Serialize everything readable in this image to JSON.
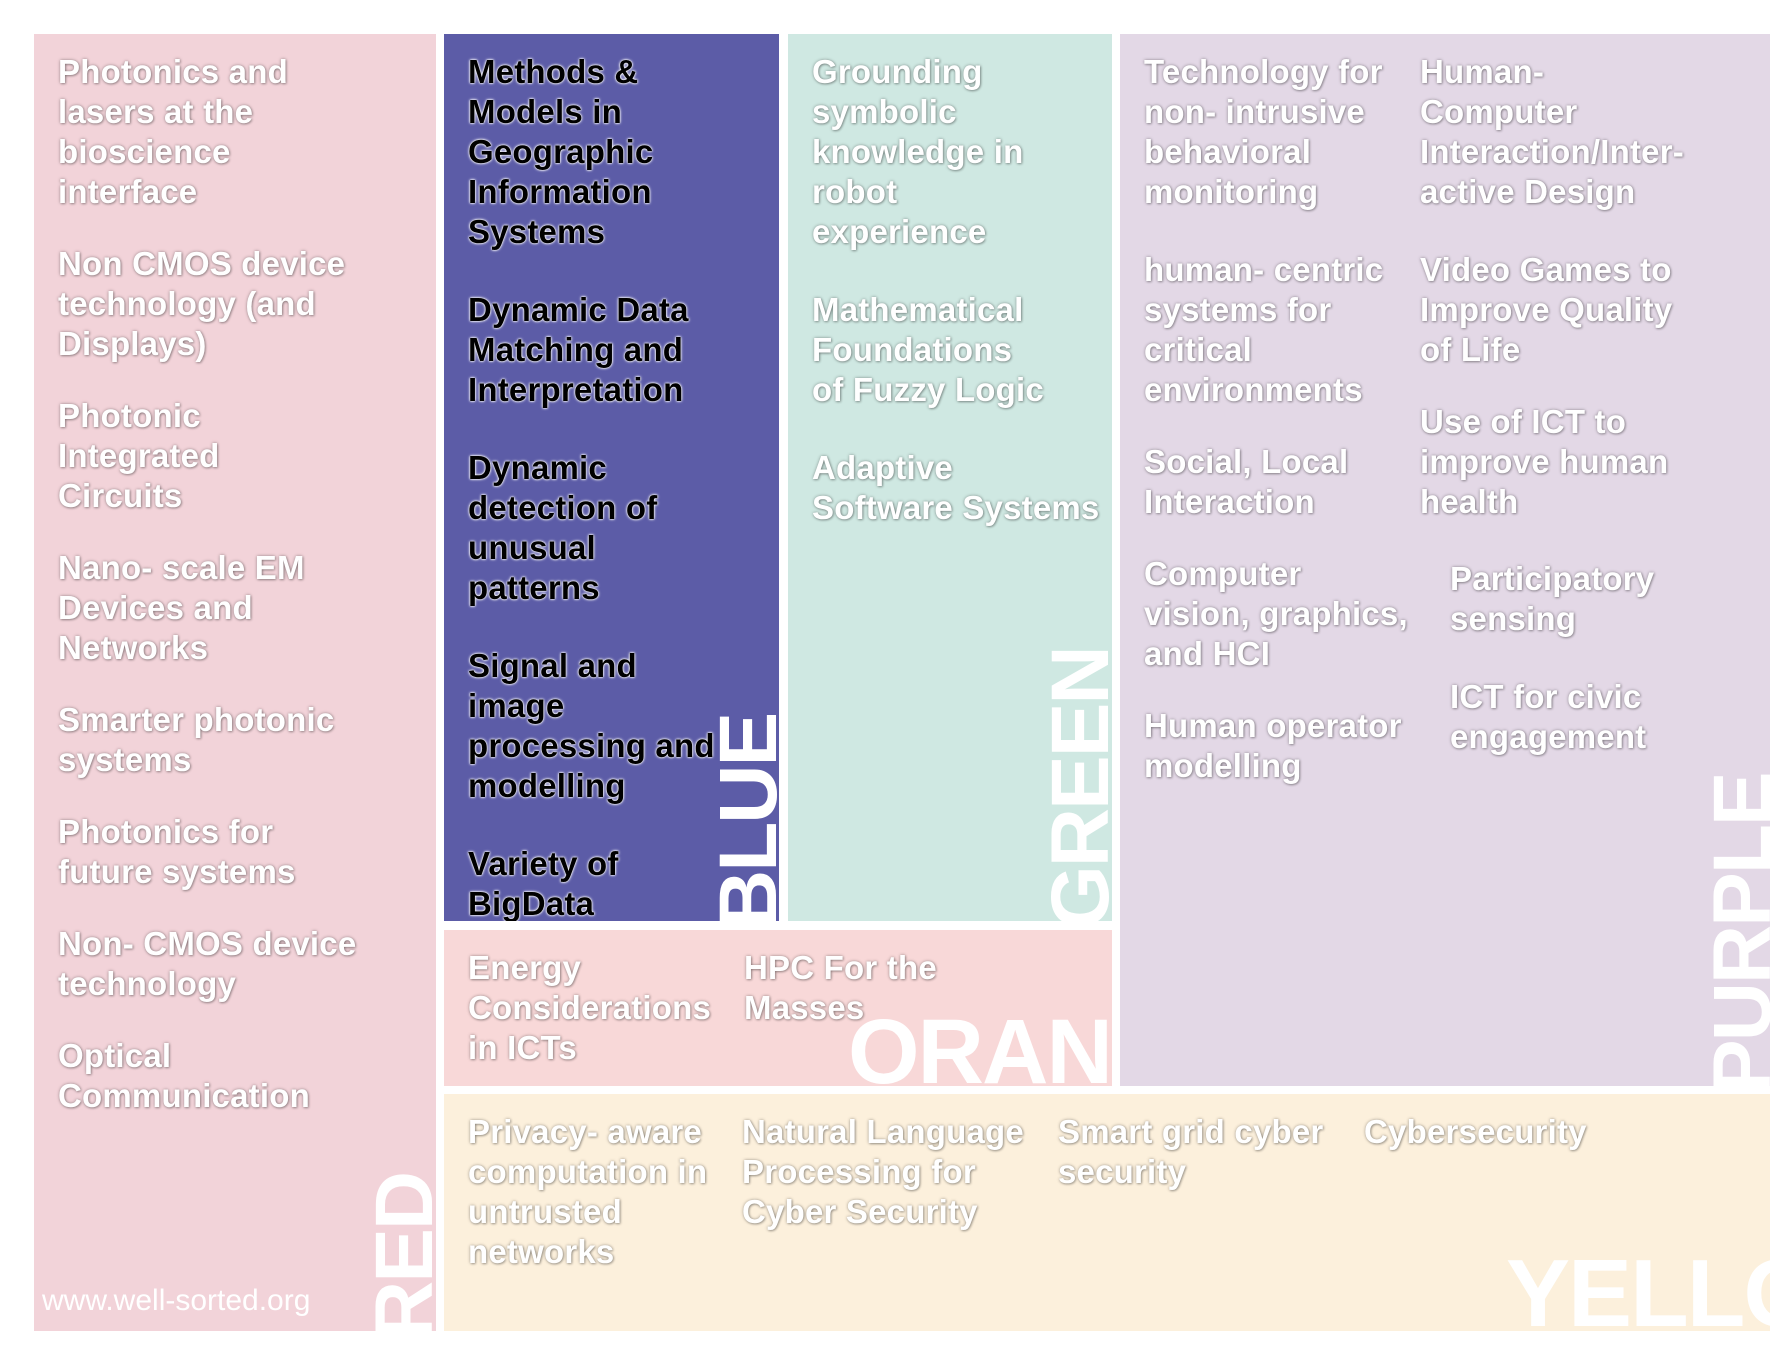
{
  "colors": {
    "red": "#f2d3d9",
    "blue": "#5c5ca7",
    "green": "#cfe8e2",
    "purple": "#e3d8e6",
    "orange": "#f8d8d8",
    "yellow": "#fcf0dc"
  },
  "red": {
    "label": "RED",
    "items": [
      "Photonics and lasers at the bioscience interface",
      "Non CMOS device technology (and Displays)",
      "Photonic Integrated Circuits",
      "Nano- scale EM Devices and Networks",
      "Smarter photonic systems",
      "Photonics for future systems",
      "Non- CMOS device technology",
      "Optical Communication"
    ]
  },
  "blue": {
    "label": "BLUE",
    "items": [
      "Methods & Models in Geographic Information Systems",
      "Dynamic Data Matching and Interpretation",
      "Dynamic detection of unusual patterns",
      "Signal and image processing and modelling",
      "Variety of BigData"
    ]
  },
  "green": {
    "label": "GREEN",
    "items": [
      "Grounding symbolic knowledge in robot experience",
      "Mathematical Foundations of Fuzzy Logic",
      "Adaptive Software Systems"
    ]
  },
  "purple": {
    "label": "PURPLE",
    "col1": [
      "Technology for non- intrusive behavioral monitoring",
      "human- centric systems for critical environments",
      "Social, Local Interaction",
      "Computer vision, graphics, and HCI",
      "Human operator modelling"
    ],
    "col2": [
      "Human- Computer Interaction/Inter- active Design",
      "Video Games to Improve Quality of Life",
      "Use of ICT to improve human health"
    ],
    "col3": [
      "Participatory sensing",
      "ICT for civic engagement"
    ]
  },
  "orange": {
    "label": "ORANGE",
    "items": [
      "Energy Considerations in ICTs",
      "HPC For the Masses"
    ]
  },
  "yellow": {
    "label": "YELLOW",
    "items": [
      "Privacy- aware computation in untrusted networks",
      "Natural Language Processing for Cyber Security",
      "Smart grid cyber security",
      "Cybersecurity"
    ]
  },
  "watermark": "www.well-sorted.org"
}
